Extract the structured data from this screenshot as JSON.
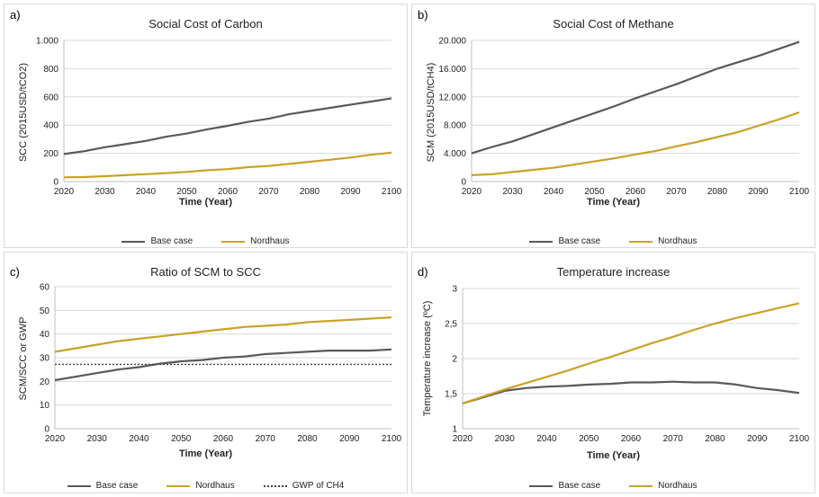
{
  "colors": {
    "base": "#595959",
    "nordhaus": "#c9a227",
    "gwp": "#404040",
    "grid": "#d9d9d9"
  },
  "chart_data": [
    {
      "panel_label": "a)",
      "type": "line",
      "title": "Social Cost of Carbon",
      "xlabel": "Time (Year)",
      "ylabel": "SCC (2015USD/tCO2)",
      "xlim": [
        2020,
        2100
      ],
      "ylim": [
        0,
        1000
      ],
      "xticks": [
        2020,
        2030,
        2040,
        2050,
        2060,
        2070,
        2080,
        2090,
        2100
      ],
      "yticks": [
        0,
        200,
        400,
        600,
        800,
        1000
      ],
      "ytick_labels": [
        "0",
        "200",
        "400",
        "600",
        "800",
        "1.000"
      ],
      "grid": true,
      "legend_position": "bottom",
      "x": [
        2020,
        2025,
        2030,
        2035,
        2040,
        2045,
        2050,
        2055,
        2060,
        2065,
        2070,
        2075,
        2080,
        2085,
        2090,
        2095,
        2100
      ],
      "series": [
        {
          "name": "Base case",
          "color": "base",
          "values": [
            195,
            215,
            243,
            265,
            288,
            318,
            340,
            370,
            395,
            423,
            445,
            477,
            500,
            522,
            545,
            567,
            590
          ]
        },
        {
          "name": "Nordhaus",
          "color": "nordhaus",
          "values": [
            30,
            32,
            38,
            45,
            52,
            60,
            68,
            80,
            88,
            102,
            110,
            125,
            140,
            155,
            170,
            190,
            205
          ]
        }
      ]
    },
    {
      "panel_label": "b)",
      "type": "line",
      "title": "Social Cost of Methane",
      "xlabel": "Time (Year)",
      "ylabel": "SCM (2015USD/tCH4)",
      "xlim": [
        2020,
        2100
      ],
      "ylim": [
        0,
        20000
      ],
      "xticks": [
        2020,
        2030,
        2040,
        2050,
        2060,
        2070,
        2080,
        2090,
        2100
      ],
      "yticks": [
        0,
        4000,
        8000,
        12000,
        16000,
        20000
      ],
      "ytick_labels": [
        "0",
        "4.000",
        "8.000",
        "12.000",
        "16.000",
        "20.000"
      ],
      "grid": true,
      "legend_position": "bottom",
      "x": [
        2020,
        2025,
        2030,
        2035,
        2040,
        2045,
        2050,
        2055,
        2060,
        2065,
        2070,
        2075,
        2080,
        2085,
        2090,
        2095,
        2100
      ],
      "series": [
        {
          "name": "Base case",
          "color": "base",
          "values": [
            4000,
            4900,
            5700,
            6700,
            7700,
            8700,
            9700,
            10700,
            11800,
            12800,
            13800,
            14900,
            16000,
            16900,
            17800,
            18800,
            19800
          ]
        },
        {
          "name": "Nordhaus",
          "color": "nordhaus",
          "values": [
            900,
            1050,
            1350,
            1650,
            1950,
            2400,
            2850,
            3300,
            3850,
            4350,
            5000,
            5600,
            6300,
            7000,
            7900,
            8800,
            9800
          ]
        }
      ]
    },
    {
      "panel_label": "c)",
      "type": "line",
      "title": "Ratio of SCM to SCC",
      "xlabel": "Time (Year)",
      "ylabel": "SCM/SCC or GWP",
      "xlim": [
        2020,
        2100
      ],
      "ylim": [
        0,
        60
      ],
      "xticks": [
        2020,
        2030,
        2040,
        2050,
        2060,
        2070,
        2080,
        2090,
        2100
      ],
      "yticks": [
        0,
        10,
        20,
        30,
        40,
        50,
        60
      ],
      "ytick_labels": [
        "0",
        "10",
        "20",
        "30",
        "40",
        "50",
        "60"
      ],
      "grid": true,
      "legend_position": "bottom",
      "x": [
        2020,
        2025,
        2030,
        2035,
        2040,
        2045,
        2050,
        2055,
        2060,
        2065,
        2070,
        2075,
        2080,
        2085,
        2090,
        2095,
        2100
      ],
      "series": [
        {
          "name": "Base case",
          "color": "base",
          "values": [
            20.5,
            22,
            23.5,
            25,
            26,
            27.5,
            28.5,
            29,
            30,
            30.5,
            31.5,
            32,
            32.5,
            33,
            33,
            33,
            33.5
          ]
        },
        {
          "name": "Nordhaus",
          "color": "nordhaus",
          "values": [
            32.5,
            34,
            35.5,
            37,
            38,
            39,
            40,
            41,
            42,
            43,
            43.5,
            44,
            45,
            45.5,
            46,
            46.5,
            47
          ]
        },
        {
          "name": "GWP of CH4",
          "color": "gwp",
          "dashed": true,
          "values": [
            27.2,
            27.2,
            27.2,
            27.2,
            27.2,
            27.2,
            27.2,
            27.2,
            27.2,
            27.2,
            27.2,
            27.2,
            27.2,
            27.2,
            27.2,
            27.2,
            27.2
          ]
        }
      ]
    },
    {
      "panel_label": "d)",
      "type": "line",
      "title": "Temperature increase",
      "xlabel": "Time (Year)",
      "ylabel": "Temperature increase (ºC)",
      "xlim": [
        2020,
        2100
      ],
      "ylim": [
        1,
        3
      ],
      "xticks": [
        2020,
        2030,
        2040,
        2050,
        2060,
        2070,
        2080,
        2090,
        2100
      ],
      "yticks": [
        1,
        1.5,
        2,
        2.5,
        3
      ],
      "ytick_labels": [
        "1",
        "1,5",
        "2",
        "2,5",
        "3"
      ],
      "grid": true,
      "legend_position": "bottom",
      "x": [
        2020,
        2025,
        2030,
        2035,
        2040,
        2045,
        2050,
        2055,
        2060,
        2065,
        2070,
        2075,
        2080,
        2085,
        2090,
        2095,
        2100
      ],
      "series": [
        {
          "name": "Base case",
          "color": "base",
          "values": [
            1.36,
            1.45,
            1.54,
            1.58,
            1.6,
            1.61,
            1.63,
            1.64,
            1.66,
            1.66,
            1.67,
            1.66,
            1.66,
            1.63,
            1.58,
            1.55,
            1.51
          ]
        },
        {
          "name": "Nordhaus",
          "color": "nordhaus",
          "values": [
            1.36,
            1.46,
            1.56,
            1.65,
            1.74,
            1.83,
            1.93,
            2.02,
            2.12,
            2.22,
            2.31,
            2.41,
            2.5,
            2.58,
            2.65,
            2.72,
            2.79
          ]
        }
      ]
    }
  ]
}
